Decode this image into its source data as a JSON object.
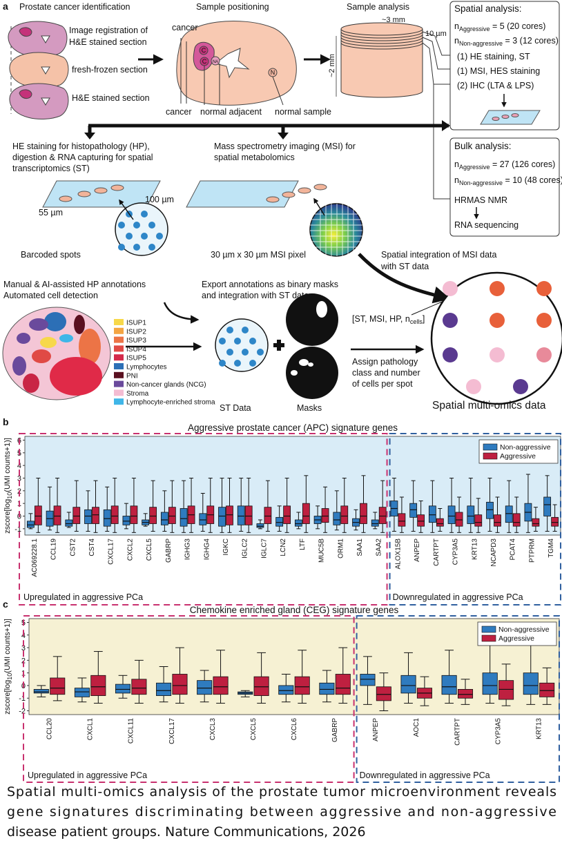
{
  "panel_a": {
    "letter": "a",
    "identification": {
      "title": "Prostate cancer identification",
      "labels": [
        "Image registration of",
        "H&E stained section",
        "fresh-frozen section",
        "H&E stained section"
      ]
    },
    "positioning": {
      "title": "Sample positioning",
      "labels": [
        "cancer",
        "cancer",
        "normal adjacent",
        "normal sample"
      ],
      "markers": [
        "C",
        "C",
        "NA",
        "N"
      ]
    },
    "analysis": {
      "title": "Sample analysis",
      "width": "~3 mm",
      "section": "10 µm",
      "height": "~2 mm"
    },
    "spatial": {
      "title": "Spatial analysis:",
      "groups": [
        {
          "base": "n",
          "sub": "Aggressive",
          "text": " = 5 (20 cores)"
        },
        {
          "base": "n",
          "sub": "Non-aggressive",
          "text": " = 3 (12 cores)"
        }
      ],
      "steps": [
        "(1) HE staining, ST",
        "(1) MSI, HES staining",
        "(2) IHC (LTA & LPS)"
      ]
    },
    "bulk": {
      "title": "Bulk analysis:",
      "groups": [
        {
          "base": "n",
          "sub": "Aggressive",
          "text": " = 27 (126 cores)"
        },
        {
          "base": "n",
          "sub": "Non-aggressive",
          "text": " = 10 (48 cores)"
        }
      ],
      "steps": [
        "HRMAS NMR",
        "RNA sequencing"
      ]
    },
    "st": {
      "lines": [
        "HE staining for histopathology (HP),",
        "digestion & RNA capturing for spatial",
        "transcriptomics (ST)"
      ],
      "spot": "55 µm",
      "spacing": "100 µm",
      "caption": "Barcoded spots"
    },
    "msi": {
      "lines": [
        "Mass spectrometry imaging (MSI) for",
        "spatial metabolomics"
      ],
      "caption": "30 µm x 30 µm MSI pixel"
    },
    "integration": {
      "lines": [
        "Spatial integration of MSI data",
        "with ST data"
      ]
    },
    "annotation": {
      "lines": [
        "Manual & AI-assisted HP annotations",
        "Automated cell detection"
      ],
      "legend": [
        {
          "label": "ISUP1",
          "color": "#f7d84a"
        },
        {
          "label": "ISUP2",
          "color": "#f4a543"
        },
        {
          "label": "ISUP3",
          "color": "#ec7446"
        },
        {
          "label": "ISUP4",
          "color": "#e04a45"
        },
        {
          "label": "ISUP5",
          "color": "#d42a4a"
        },
        {
          "label": "Lymphocytes",
          "color": "#2c6fb6"
        },
        {
          "label": "PNI",
          "color": "#5a1020"
        },
        {
          "label": "Non-cancer glands (NCG)",
          "color": "#6a4a9c"
        },
        {
          "label": "Stroma",
          "color": "#f4bcd2"
        },
        {
          "label": "Lymphocyte-enriched stroma",
          "color": "#3fb6e8"
        }
      ]
    },
    "export": {
      "lines": [
        "Export annotations as binary masks",
        "and integration with ST data"
      ],
      "st_label": "ST Data",
      "mask_label": "Masks"
    },
    "vector": {
      "base": "[ST, MSI, HP, n",
      "sub": "cells",
      "text": "]"
    },
    "assign": {
      "lines": [
        "Assign pathology",
        "class and number",
        "of cells per spot"
      ]
    },
    "result": "Spatial multi-omics data"
  },
  "chart_data": [
    {
      "type": "box",
      "letter": "b",
      "title": "Aggressive prostate cancer (APC) signature genes",
      "y_label": {
        "base": "zscore[log",
        "sub": "10",
        "text": "(UMI counts+1)]"
      },
      "groups": [
        {
          "label": "Upregulated in aggressive PCa",
          "color": "#c8306e",
          "categories": [
            "AC069228.1",
            "CCL19",
            "CST2",
            "CST4",
            "CXCL17",
            "CXCL2",
            "CXCL5",
            "GABRP",
            "IGHG3",
            "IGHG4",
            "IGKC",
            "IGLC2",
            "IGLC7",
            "LCN2",
            "LTF",
            "MUC5B",
            "ORM1",
            "SAA1",
            "SAA2"
          ]
        },
        {
          "label": "Downregulated in aggressive PCa",
          "color": "#2f5f9f",
          "categories": [
            "ALOX15B",
            "ANPEP",
            "CARTPT",
            "CYP3A5",
            "KRT13",
            "NCAPD3",
            "PCAT4",
            "PTPRM",
            "TGM4"
          ]
        }
      ],
      "series": [
        {
          "name": "Non-aggressive",
          "color": "#2f7bbf",
          "values": [
            [
              -1.0,
              -0.9,
              -0.7,
              -0.4,
              0.2
            ],
            [
              -1.1,
              -0.8,
              -0.2,
              0.4,
              2.3
            ],
            [
              -0.9,
              -0.8,
              -0.6,
              -0.3,
              0.3
            ],
            [
              -1.2,
              -0.6,
              0.0,
              0.5,
              2.0
            ],
            [
              -1.2,
              -0.8,
              -0.2,
              0.5,
              2.3
            ],
            [
              -1.0,
              -0.7,
              -0.4,
              0.0,
              1.0
            ],
            [
              -0.8,
              -0.7,
              -0.5,
              -0.3,
              0.2
            ],
            [
              -1.2,
              -0.7,
              -0.3,
              0.3,
              2.0
            ],
            [
              -1.3,
              -0.8,
              -0.2,
              0.6,
              2.8
            ],
            [
              -1.2,
              -0.7,
              -0.3,
              0.2,
              1.8
            ],
            [
              -1.3,
              -0.8,
              0.0,
              0.7,
              3.0
            ],
            [
              -1.2,
              -0.7,
              0.0,
              0.8,
              3.0
            ],
            [
              -1.0,
              -0.9,
              -0.8,
              -0.6,
              -0.3
            ],
            [
              -1.2,
              -0.8,
              -0.5,
              -0.1,
              0.8
            ],
            [
              -1.0,
              -0.8,
              -0.6,
              -0.3,
              0.3
            ],
            [
              -1.0,
              -0.6,
              -0.3,
              0.0,
              0.8
            ],
            [
              -1.1,
              -0.7,
              -0.3,
              0.3,
              2.0
            ],
            [
              -1.1,
              -0.8,
              -0.5,
              -0.2,
              0.5
            ],
            [
              -1.0,
              -0.8,
              -0.6,
              -0.3,
              0.3
            ],
            [
              -1.2,
              0.0,
              0.6,
              1.2,
              3.0
            ],
            [
              -1.2,
              -0.1,
              0.5,
              1.0,
              2.8
            ],
            [
              -1.3,
              -0.5,
              0.1,
              0.8,
              2.8
            ],
            [
              -1.3,
              -0.6,
              0.0,
              0.8,
              3.0
            ],
            [
              -1.3,
              -0.6,
              0.0,
              0.8,
              3.0
            ],
            [
              -1.2,
              -0.2,
              0.5,
              1.1,
              3.0
            ],
            [
              -1.3,
              -0.5,
              0.2,
              0.8,
              2.8
            ],
            [
              -1.3,
              -0.4,
              0.3,
              1.0,
              3.3
            ],
            [
              -1.2,
              0.0,
              0.9,
              1.5,
              3.2
            ]
          ]
        },
        {
          "name": "Aggressive",
          "color": "#be2040",
          "values": [
            [
              -1.3,
              -0.7,
              0.0,
              0.8,
              3.0
            ],
            [
              -1.3,
              -0.7,
              0.0,
              0.8,
              3.0
            ],
            [
              -1.2,
              -0.6,
              0.0,
              0.7,
              2.8
            ],
            [
              -1.3,
              -0.6,
              0.1,
              0.7,
              2.8
            ],
            [
              -1.3,
              -0.6,
              0.0,
              0.8,
              3.0
            ],
            [
              -1.3,
              -0.6,
              0.0,
              0.8,
              3.0
            ],
            [
              -1.2,
              -0.6,
              0.0,
              0.7,
              2.8
            ],
            [
              -1.3,
              -0.6,
              0.0,
              0.7,
              2.8
            ],
            [
              -1.3,
              -0.6,
              0.1,
              0.8,
              3.0
            ],
            [
              -1.3,
              -0.6,
              0.1,
              0.8,
              3.0
            ],
            [
              -1.3,
              -0.7,
              0.1,
              0.8,
              3.0
            ],
            [
              -1.3,
              -0.7,
              0.0,
              0.8,
              3.0
            ],
            [
              -1.2,
              -0.6,
              0.0,
              0.7,
              2.8
            ],
            [
              -1.3,
              -0.6,
              0.0,
              0.8,
              3.0
            ],
            [
              -1.3,
              -0.6,
              0.0,
              1.0,
              3.2
            ],
            [
              -1.3,
              -0.5,
              0.0,
              0.6,
              2.3
            ],
            [
              -1.3,
              -0.6,
              0.0,
              0.8,
              3.0
            ],
            [
              -1.3,
              -0.6,
              0.0,
              1.0,
              3.2
            ],
            [
              -1.3,
              -0.6,
              0.0,
              0.7,
              2.8
            ],
            [
              -1.3,
              -0.8,
              -0.4,
              0.2,
              1.5
            ],
            [
              -1.3,
              -0.8,
              -0.4,
              0.1,
              1.2
            ],
            [
              -1.2,
              -0.8,
              -0.6,
              -0.2,
              0.6
            ],
            [
              -1.3,
              -0.8,
              -0.3,
              0.3,
              1.5
            ],
            [
              -1.3,
              -0.8,
              -0.5,
              0.1,
              1.4
            ],
            [
              -1.3,
              -0.8,
              -0.5,
              0.1,
              1.5
            ],
            [
              -1.3,
              -0.8,
              -0.5,
              0.2,
              1.5
            ],
            [
              -1.2,
              -0.8,
              -0.6,
              -0.2,
              0.7
            ],
            [
              -1.2,
              -0.8,
              -0.5,
              -0.1,
              0.9
            ]
          ]
        }
      ],
      "ylim": [
        -1.5,
        6.3
      ],
      "yticks": [
        -1,
        0,
        1,
        2,
        3,
        4,
        5,
        6
      ],
      "legend": "upper right",
      "background": "#d9ecf7"
    },
    {
      "type": "box",
      "letter": "c",
      "title": "Chemokine enriched gland (CEG) signature genes",
      "y_label": {
        "base": "zscore[log",
        "sub": "10",
        "text": "(UMI counts+1)]"
      },
      "groups": [
        {
          "label": "Upregulated in aggressive PCa",
          "color": "#c8306e",
          "categories": [
            "CCL20",
            "CXCL1",
            "CXCL11",
            "CXCL17",
            "CXCL3",
            "CXCL5",
            "CXCL6",
            "GABRP"
          ]
        },
        {
          "label": "Downregulated in aggressive PCa",
          "color": "#2f5f9f",
          "categories": [
            "ANPEP",
            "AOC1",
            "CARTPT",
            "CYP3A5",
            "KRT13"
          ]
        }
      ],
      "series": [
        {
          "name": "Non-aggressive",
          "color": "#2f7bbf",
          "values": [
            [
              -0.9,
              -0.6,
              -0.5,
              -0.3,
              0.0
            ],
            [
              -1.3,
              -0.9,
              -0.5,
              -0.2,
              0.6
            ],
            [
              -1.0,
              -0.6,
              -0.3,
              0.1,
              0.8
            ],
            [
              -1.3,
              -0.8,
              -0.4,
              0.2,
              1.5
            ],
            [
              -1.3,
              -0.7,
              -0.2,
              0.4,
              1.2
            ],
            [
              -0.9,
              -0.7,
              -0.6,
              -0.5,
              -0.4
            ],
            [
              -1.3,
              -0.7,
              -0.4,
              0.0,
              0.9
            ],
            [
              -1.3,
              -0.7,
              -0.3,
              0.2,
              1.2
            ],
            [
              -1.5,
              0.0,
              0.5,
              0.9,
              2.3
            ],
            [
              -1.4,
              -0.6,
              0.0,
              0.8,
              2.6
            ],
            [
              -1.4,
              -0.7,
              -0.1,
              0.8,
              2.8
            ],
            [
              -1.4,
              -0.7,
              0.0,
              1.0,
              3.2
            ],
            [
              -1.5,
              -0.7,
              0.0,
              1.0,
              3.2
            ]
          ]
        },
        {
          "name": "Aggressive",
          "color": "#be2040",
          "values": [
            [
              -1.2,
              -0.7,
              -0.2,
              0.6,
              2.3
            ],
            [
              -1.4,
              -0.8,
              -0.1,
              0.8,
              2.7
            ],
            [
              -1.4,
              -0.7,
              -0.2,
              0.5,
              2.0
            ],
            [
              -1.4,
              -0.7,
              0.0,
              0.9,
              3.0
            ],
            [
              -1.4,
              -0.7,
              -0.1,
              0.7,
              2.8
            ],
            [
              -1.4,
              -0.8,
              -0.1,
              0.7,
              2.6
            ],
            [
              -1.4,
              -0.7,
              -0.1,
              0.7,
              2.8
            ],
            [
              -1.4,
              -0.7,
              -0.2,
              0.9,
              3.0
            ],
            [
              -2.0,
              -1.2,
              -0.7,
              -0.1,
              1.0
            ],
            [
              -1.6,
              -1.0,
              -0.6,
              -0.2,
              0.7
            ],
            [
              -1.5,
              -1.0,
              -0.7,
              -0.3,
              0.5
            ],
            [
              -1.6,
              -1.1,
              -0.3,
              0.4,
              1.7
            ],
            [
              -1.5,
              -0.9,
              -0.4,
              0.2,
              1.4
            ]
          ]
        }
      ],
      "ylim": [
        -2.3,
        5.3
      ],
      "yticks": [
        -2,
        -1,
        0,
        1,
        2,
        3,
        4,
        5
      ],
      "legend": "upper right",
      "background": "#f6f1d3"
    }
  ],
  "caption": [
    "Spatial multi-omics analysis of the prostate tumor microenvironment reveals",
    "gene signatures discriminating between aggressive and non-aggressive",
    "disease patient groups. Nature Communications, 2026"
  ]
}
